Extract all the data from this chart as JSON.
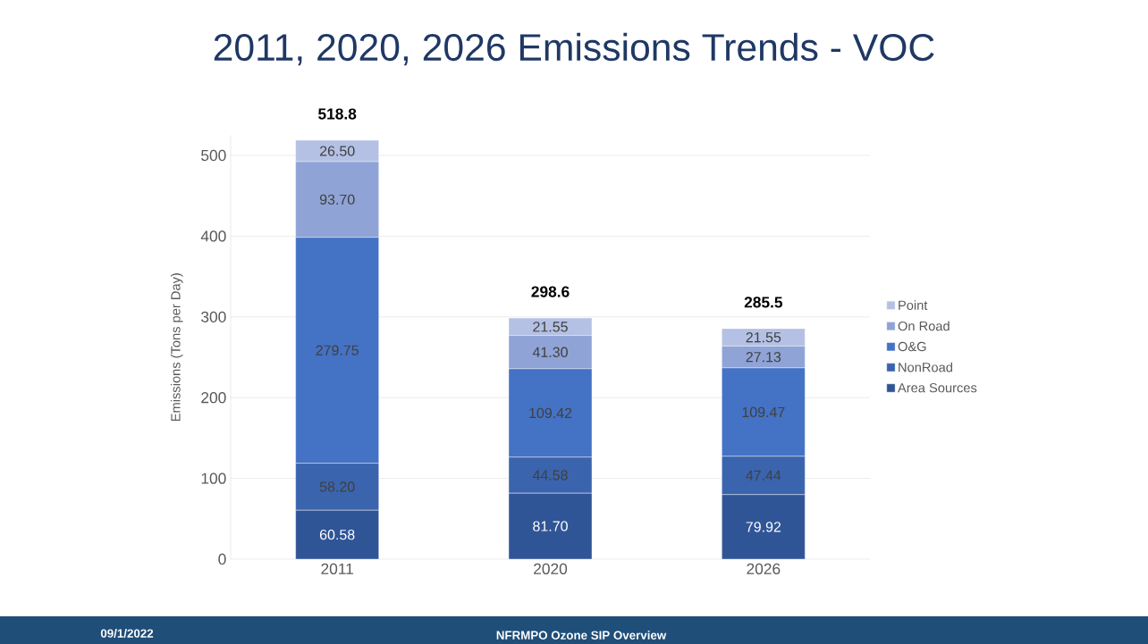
{
  "chart_data": {
    "type": "bar",
    "stacked": true,
    "title": "2011, 2020, 2026 Emissions Trends - VOC",
    "ylabel": "Emissions  (Tons per Day)",
    "categories": [
      "2011",
      "2020",
      "2026"
    ],
    "series": [
      {
        "name": "Area Sources",
        "color": "#2f5597",
        "values": [
          60.58,
          81.7,
          79.92
        ],
        "value_labels": [
          "60.58",
          "81.70",
          "79.92"
        ]
      },
      {
        "name": "NonRoad",
        "color": "#3a64ad",
        "values": [
          58.2,
          44.58,
          47.44
        ],
        "value_labels": [
          "58.20",
          "44.58",
          "47.44"
        ]
      },
      {
        "name": "O&G",
        "color": "#4472c4",
        "values": [
          279.75,
          109.42,
          109.47
        ],
        "value_labels": [
          "279.75",
          "109.42",
          "109.47"
        ]
      },
      {
        "name": "On Road",
        "color": "#8fa3d6",
        "values": [
          93.7,
          41.3,
          27.13
        ],
        "value_labels": [
          "93.70",
          "41.30",
          "27.13"
        ]
      },
      {
        "name": "Point",
        "color": "#b4c1e4",
        "values": [
          26.5,
          21.55,
          21.55
        ],
        "value_labels": [
          "26.50",
          "21.55",
          "21.55"
        ]
      }
    ],
    "totals": [
      "518.8",
      "298.6",
      "285.5"
    ],
    "ylim": [
      0,
      525
    ],
    "yticks": [
      0,
      100,
      200,
      300,
      400,
      500
    ],
    "grid": "y",
    "legend": "right",
    "annotations": [
      "09/1/2022",
      "NFRMPO Ozone SIP Overview"
    ]
  }
}
